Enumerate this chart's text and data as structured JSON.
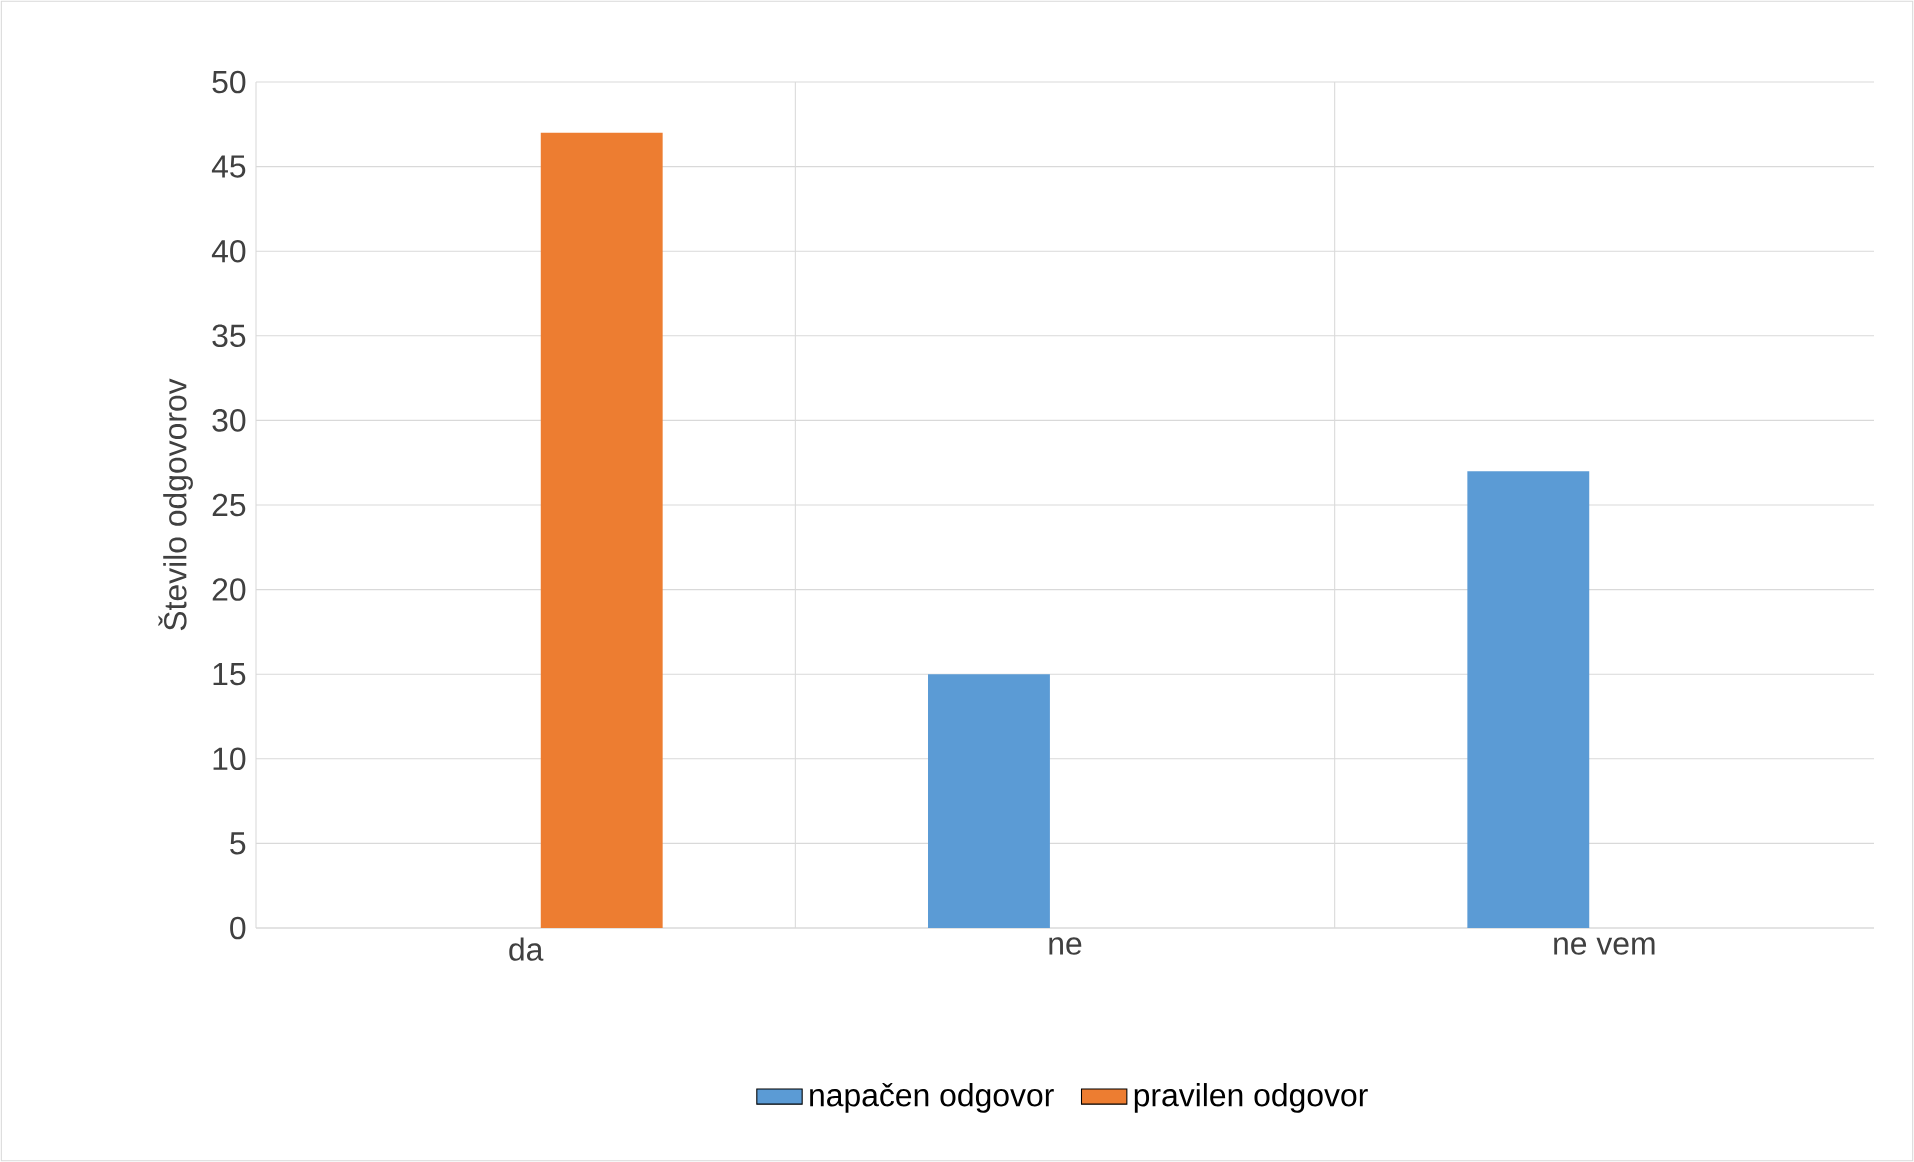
{
  "chart_data": {
    "type": "bar",
    "ylabel": "Število odgovorov",
    "categories": [
      "da",
      "ne",
      "ne vem"
    ],
    "series": [
      {
        "name": "napačen odgovor",
        "color": "#5b9bd5",
        "values": [
          0,
          15,
          27
        ]
      },
      {
        "name": "pravilen odgovor",
        "color": "#ed7d31",
        "values": [
          47,
          0,
          0
        ]
      }
    ],
    "ylim": [
      0,
      50
    ],
    "yticks": [
      0,
      5,
      10,
      15,
      20,
      25,
      30,
      35,
      40,
      45,
      50
    ],
    "grid": true,
    "legend": "bottom"
  }
}
